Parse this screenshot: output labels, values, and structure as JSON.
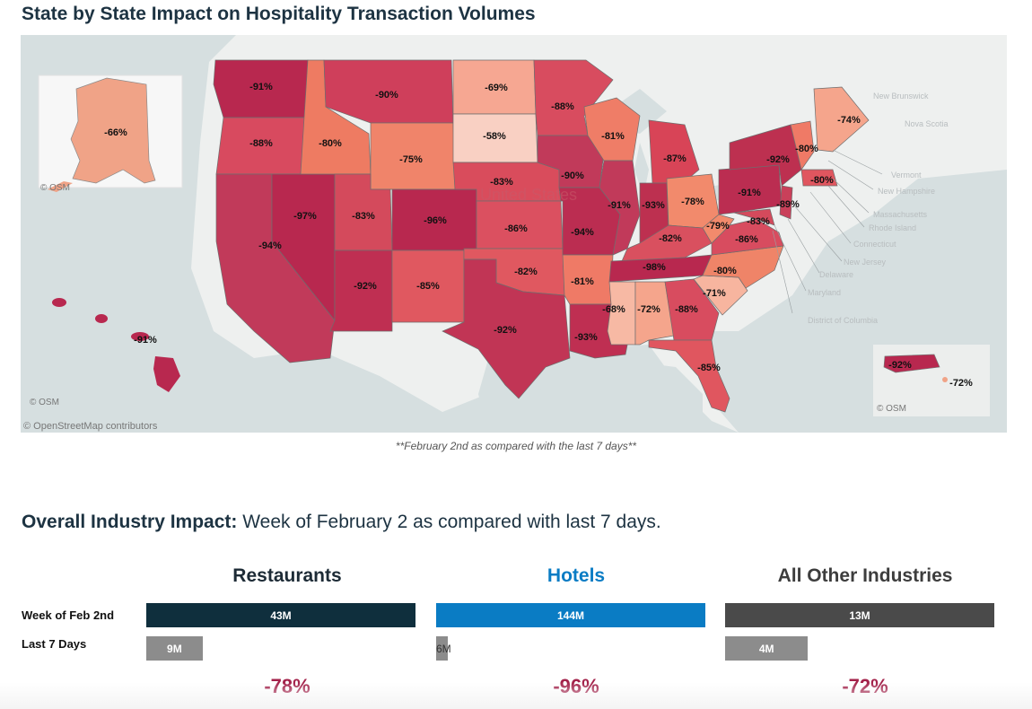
{
  "page": {
    "title": "State by State Impact on Hospitality Transaction Volumes",
    "map_caption": "**February 2nd as compared with the last 7 days**",
    "osm_labels": {
      "alaska": "© OSM",
      "hawaii": "© OSM",
      "puerto_rico": "© OSM",
      "contributors": "© OpenStreetMap contributors"
    },
    "basemap_labels": [
      "New Brunswick",
      "Nova Scotia",
      "Vermont",
      "New Hampshire",
      "Massachusetts",
      "Rhode Island",
      "Connecticut",
      "New Jersey",
      "Delaware",
      "Maryland",
      "District of Columbia",
      "United States"
    ],
    "colors": {
      "map_high": "#b8284f",
      "map_low": "#f7c6b8",
      "land": "#eef0ef",
      "water": "#d6dfe0",
      "restaurants": "#0f2f3d",
      "hotels": "#0a7cc4",
      "other": "#4a4a4a",
      "last7": "#8c8c8c",
      "pct": "#a3224a"
    }
  },
  "states": [
    {
      "state": "Washington",
      "label": "-91%",
      "value": -91
    },
    {
      "state": "Oregon",
      "label": "-88%",
      "value": -88
    },
    {
      "state": "California",
      "label": "-94%",
      "value": -94
    },
    {
      "state": "Nevada",
      "label": "-97%",
      "value": -97
    },
    {
      "state": "Idaho",
      "label": "-80%",
      "value": -80
    },
    {
      "state": "Montana",
      "label": "-90%",
      "value": -90
    },
    {
      "state": "Wyoming",
      "label": "-75%",
      "value": -75
    },
    {
      "state": "Utah",
      "label": "-83%",
      "value": -83
    },
    {
      "state": "Colorado",
      "label": "-96%",
      "value": -96
    },
    {
      "state": "Arizona",
      "label": "-92%",
      "value": -92
    },
    {
      "state": "New Mexico",
      "label": "-85%",
      "value": -85
    },
    {
      "state": "North Dakota",
      "label": "-69%",
      "value": -69
    },
    {
      "state": "South Dakota",
      "label": "-58%",
      "value": -58
    },
    {
      "state": "Nebraska",
      "label": "-83%",
      "value": -83
    },
    {
      "state": "Kansas",
      "label": "-86%",
      "value": -86
    },
    {
      "state": "Oklahoma",
      "label": "-82%",
      "value": -82
    },
    {
      "state": "Texas",
      "label": "-92%",
      "value": -92
    },
    {
      "state": "Minnesota",
      "label": "-88%",
      "value": -88
    },
    {
      "state": "Iowa",
      "label": "-90%",
      "value": -90
    },
    {
      "state": "Missouri",
      "label": "-94%",
      "value": -94
    },
    {
      "state": "Arkansas",
      "label": "-81%",
      "value": -81
    },
    {
      "state": "Louisiana",
      "label": "-93%",
      "value": -93
    },
    {
      "state": "Wisconsin",
      "label": "-81%",
      "value": -81
    },
    {
      "state": "Illinois",
      "label": "-91%",
      "value": -91
    },
    {
      "state": "Michigan",
      "label": "-87%",
      "value": -87
    },
    {
      "state": "Indiana",
      "label": "-93%",
      "value": -93
    },
    {
      "state": "Ohio",
      "label": "-78%",
      "value": -78
    },
    {
      "state": "Kentucky",
      "label": "-82%",
      "value": -82
    },
    {
      "state": "Tennessee",
      "label": "-98%",
      "value": -98
    },
    {
      "state": "Mississippi",
      "label": "-68%",
      "value": -68
    },
    {
      "state": "Alabama",
      "label": "-72%",
      "value": -72
    },
    {
      "state": "Georgia",
      "label": "-88%",
      "value": -88
    },
    {
      "state": "Florida",
      "label": "-85%",
      "value": -85
    },
    {
      "state": "South Carolina",
      "label": "-71%",
      "value": -71
    },
    {
      "state": "North Carolina",
      "label": "-80%",
      "value": -80
    },
    {
      "state": "Virginia",
      "label": "-86%",
      "value": -86
    },
    {
      "state": "West Virginia",
      "label": "-79%",
      "value": -79
    },
    {
      "state": "Maryland",
      "label": "-83%",
      "value": -83
    },
    {
      "state": "Pennsylvania",
      "label": "-91%",
      "value": -91
    },
    {
      "state": "New York",
      "label": "-92%",
      "value": -92
    },
    {
      "state": "New Jersey",
      "label": "-89%",
      "value": -89
    },
    {
      "state": "Vermont",
      "label": "-80%",
      "value": -80
    },
    {
      "state": "Massachusetts",
      "label": "-80%",
      "value": -80
    },
    {
      "state": "Maine",
      "label": "-74%",
      "value": -74
    },
    {
      "state": "Alaska",
      "label": "-66%",
      "value": -66
    },
    {
      "state": "Hawaii",
      "label": "-91%",
      "value": -91
    },
    {
      "state": "Puerto Rico",
      "label": "-92%",
      "value": -92
    },
    {
      "state": "Virgin Islands",
      "label": "-72%",
      "value": -72
    }
  ],
  "industry": {
    "heading_bold": "Overall Industry Impact:",
    "heading_rest": " Week of February 2 as compared with last 7 days.",
    "row_labels": {
      "current": "Week of Feb 2nd",
      "previous": "Last 7 Days"
    }
  },
  "chart_data": [
    {
      "type": "bar",
      "title": "Overall Industry Impact: Week of February 2 as compared with last 7 days.",
      "categories": [
        "Restaurants",
        "Hotels",
        "All Other Industries"
      ],
      "series": [
        {
          "name": "Week of Feb 2nd",
          "values": [
            43,
            144,
            13
          ],
          "labels": [
            "43M",
            "144M",
            "13M"
          ]
        },
        {
          "name": "Last 7 Days",
          "values": [
            9,
            6,
            4
          ],
          "labels": [
            "9M",
            "6M",
            "4M"
          ]
        }
      ],
      "change_labels": [
        "-78%",
        "-96%",
        "-72%"
      ],
      "unit": "M",
      "bar_scale": "each panel scaled to its own maximum"
    },
    {
      "type": "heatmap",
      "title": "State by State Impact on Hospitality Transaction Volumes",
      "note": "choropleth map; state values listed in states[]",
      "value_range": [
        -98,
        -58
      ]
    }
  ]
}
